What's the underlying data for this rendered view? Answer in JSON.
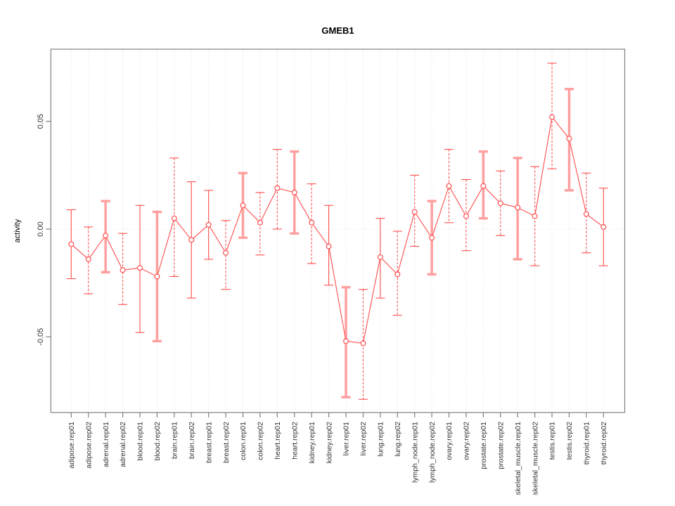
{
  "title": "GMEB1",
  "ylabel": "activity",
  "chart_data": {
    "type": "line",
    "subtype": "points-with-error-bars",
    "title": "GMEB1",
    "xlabel": "",
    "ylabel": "activity",
    "ylim": [
      -0.084,
      0.084
    ],
    "yticks": [
      0.05,
      0.0,
      -0.05
    ],
    "ytick_labels": [
      "0.05",
      "0.00",
      "-0.05"
    ],
    "grid": "vertical dotted gridline per category; faint dotted horizontal line at y=0",
    "legend_position": "none",
    "categories": [
      "adipose.rep01",
      "adipose.rep02",
      "adrenal.rep01",
      "adrenal.rep02",
      "blood.rep01",
      "blood.rep02",
      "brain.rep01",
      "brain.rep02",
      "breast.rep01",
      "breast.rep02",
      "colon.rep01",
      "colon.rep02",
      "heart.rep01",
      "heart.rep02",
      "kidney.rep01",
      "kidney.rep02",
      "liver.rep01",
      "liver.rep02",
      "lung.rep01",
      "lung.rep02",
      "lymph_node.rep01",
      "lymph_node.rep02",
      "ovary.rep01",
      "ovary.rep02",
      "prostate.rep01",
      "prostate.rep02",
      "skeletal_muscle.rep01",
      "skeletal_muscle.rep02",
      "testis.rep01",
      "testis.rep02",
      "thyroid.rep01",
      "thyroid.rep02"
    ],
    "series": [
      {
        "name": "activity",
        "values": [
          -0.007,
          -0.014,
          -0.003,
          -0.019,
          -0.018,
          -0.022,
          0.005,
          -0.005,
          0.002,
          -0.011,
          0.011,
          0.003,
          0.019,
          0.017,
          0.003,
          -0.008,
          -0.052,
          -0.053,
          -0.013,
          -0.021,
          0.008,
          -0.004,
          0.02,
          0.006,
          0.02,
          0.012,
          0.01,
          0.006,
          0.052,
          0.042,
          0.007,
          0.001
        ],
        "ci_lower": [
          -0.023,
          -0.03,
          -0.02,
          -0.035,
          -0.048,
          -0.052,
          -0.022,
          -0.032,
          -0.014,
          -0.028,
          -0.004,
          -0.012,
          0.0,
          -0.002,
          -0.016,
          -0.026,
          -0.078,
          -0.079,
          -0.032,
          -0.04,
          -0.008,
          -0.021,
          0.003,
          -0.01,
          0.005,
          -0.003,
          -0.014,
          -0.017,
          0.028,
          0.018,
          -0.011,
          -0.017
        ],
        "ci_upper": [
          0.009,
          0.001,
          0.013,
          -0.002,
          0.011,
          0.008,
          0.033,
          0.022,
          0.018,
          0.004,
          0.026,
          0.017,
          0.037,
          0.036,
          0.021,
          0.011,
          -0.027,
          -0.028,
          0.005,
          -0.001,
          0.025,
          0.013,
          0.037,
          0.023,
          0.036,
          0.027,
          0.033,
          0.029,
          0.077,
          0.065,
          0.026,
          0.019
        ],
        "bar_styles": [
          "solid",
          "dashed",
          "thick",
          "dashed",
          "solid",
          "thick",
          "dashed",
          "solid",
          "solid",
          "dashed",
          "thick",
          "dashed",
          "dashed",
          "thick",
          "dashed",
          "solid",
          "thick",
          "dashed",
          "solid",
          "dashed",
          "dashed",
          "thick",
          "dashed",
          "dashed",
          "thick",
          "dashed",
          "thick",
          "dashed",
          "dashed",
          "thick",
          "dashed",
          "solid"
        ]
      }
    ],
    "colors": {
      "point": "#ff4d4d",
      "series_line": "#ff4d4d",
      "errorbar_thin": "#ff4d4d",
      "errorbar_thick": "#ffa0a0",
      "gridline": "#d9d9d9",
      "zeroline": "#e2e2e2",
      "box": "#808080",
      "tick_text": "#333333"
    }
  }
}
